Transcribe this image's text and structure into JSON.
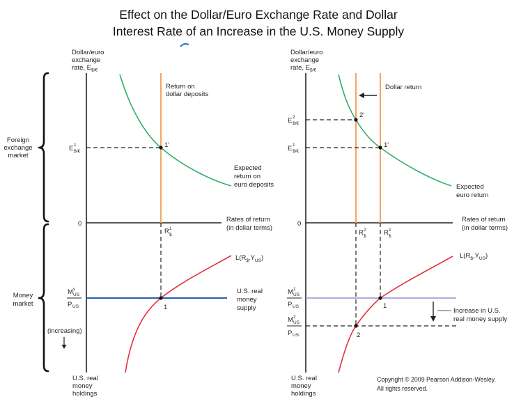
{
  "title": {
    "line1": "Effect on the Dollar/Euro Exchange Rate and Dollar",
    "line2": "Interest Rate of an Increase in the U.S. Money Supply"
  },
  "colors": {
    "euro_return_curve": "#2fae6b",
    "dollar_return_line": "#f5a463",
    "money_demand_curve": "#e5303f",
    "money_supply_left": "#2462b3",
    "money_supply_right_initial": "#a9b0dc",
    "stray_mark": "#1e6fd9"
  },
  "brackets": {
    "foreign_exchange_market": [
      "Foreign",
      "exchange",
      "market"
    ],
    "money_market": [
      "Money",
      "market"
    ]
  },
  "left": {
    "y_axis_label": {
      "line1": "Dollar/euro",
      "line2": "exchange",
      "line3": "rate, E",
      "line3_sub": "$/€"
    },
    "origin": "0",
    "x_axis_label": {
      "line1": "Rates of return",
      "line2": "(in dollar terms)"
    },
    "dollar_return_label": {
      "line1": "Return on",
      "line2": "dollar deposits"
    },
    "euro_return_label": {
      "line1": "Expected",
      "line2": "return on",
      "line3": "euro deposits"
    },
    "e1": {
      "main": "E",
      "sup": "1",
      "sub": "$/€"
    },
    "point_1_prime": "1'",
    "r1": {
      "main": "R",
      "sup": "1",
      "sub": "$"
    },
    "liquidity": {
      "prefix": "L(R",
      "sub1": "$",
      "mid": ",Y",
      "sub2": "US",
      "suffix": ")"
    },
    "money_supply_label": {
      "line1": "U.S. real",
      "line2": "money",
      "line3": "supply"
    },
    "point_1": "1",
    "ms": {
      "num_main": "M",
      "num_sup": "s",
      "num_sub": "US",
      "den_main": "P",
      "den_sub": "US"
    },
    "increasing": "(increasing)",
    "holdings_label": {
      "line1": "U.S. real",
      "line2": "money",
      "line3": "holdings"
    }
  },
  "right": {
    "y_axis_label": {
      "line1": "Dollar/euro",
      "line2": "exchange",
      "line3": "rate, E",
      "line3_sub": "$/€"
    },
    "origin": "0",
    "x_axis_label": {
      "line1": "Rates of return",
      "line2": "(in dollar terms)"
    },
    "dollar_return_label": "Dollar return",
    "euro_return_label": {
      "line1": "Expected",
      "line2": "euro return"
    },
    "e2": {
      "main": "E",
      "sup": "2",
      "sub": "$/€"
    },
    "e1": {
      "main": "E",
      "sup": "1",
      "sub": "$/€"
    },
    "point_2_prime": "2'",
    "point_1_prime": "1'",
    "r2": {
      "main": "R",
      "sup": "2",
      "sub": "$"
    },
    "r1": {
      "main": "R",
      "sup": "1",
      "sub": "$"
    },
    "liquidity": {
      "prefix": "L(R",
      "sub1": "$",
      "mid": ",Y",
      "sub2": "US",
      "suffix": ")"
    },
    "point_1": "1",
    "point_2": "2",
    "m1": {
      "num_main": "M",
      "num_sup": "1",
      "num_sub": "US",
      "den_main": "P",
      "den_sub": "US"
    },
    "m2": {
      "num_main": "M",
      "num_sup": "2",
      "num_sub": "US",
      "den_main": "P",
      "den_sub": "US"
    },
    "increase_label": {
      "line1": "Increase in U.S.",
      "line2": "real money supply"
    },
    "holdings_label": {
      "line1": "U.S. real",
      "line2": "money",
      "line3": "holdings"
    }
  },
  "copyright": {
    "line1": "Copyright © 2009 Pearson Addison-Wesley.",
    "line2": "All rights reserved."
  }
}
